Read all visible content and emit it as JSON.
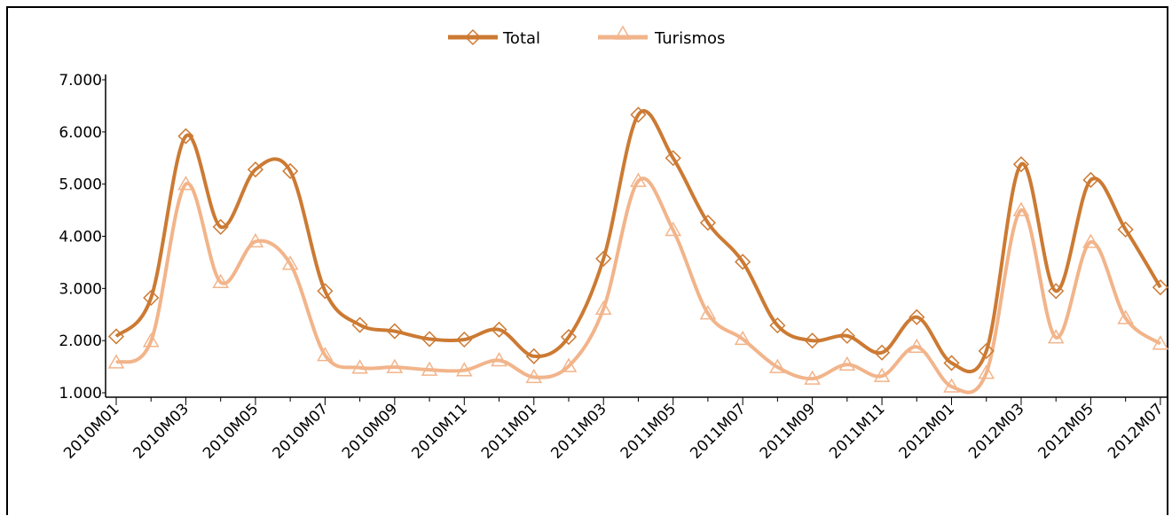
{
  "chart_data": {
    "type": "line",
    "title": "",
    "xlabel": "",
    "ylabel": "",
    "ylim": [
      1000,
      7000
    ],
    "y_ticks": [
      "1.000",
      "2.000",
      "3.000",
      "4.000",
      "5.000",
      "6.000",
      "7.000"
    ],
    "y_tick_values": [
      1000,
      2000,
      3000,
      4000,
      5000,
      6000,
      7000
    ],
    "x_tick_labels": [
      "2010M01",
      "2010M03",
      "2010M05",
      "2010M07",
      "2010M09",
      "2010M11",
      "2011M01",
      "2011M03",
      "2011M05",
      "2011M07",
      "2011M09",
      "2011M11",
      "2012M01",
      "2012M03",
      "2012M05",
      "2012M07"
    ],
    "legend_position": "top-center",
    "grid": false,
    "categories": [
      "2010M01",
      "2010M02",
      "2010M03",
      "2010M04",
      "2010M05",
      "2010M06",
      "2010M07",
      "2010M08",
      "2010M09",
      "2010M10",
      "2010M11",
      "2010M12",
      "2011M01",
      "2011M02",
      "2011M03",
      "2011M04",
      "2011M05",
      "2011M06",
      "2011M07",
      "2011M08",
      "2011M09",
      "2011M10",
      "2011M11",
      "2011M12",
      "2012M01",
      "2012M02",
      "2012M03",
      "2012M04",
      "2012M05",
      "2012M06",
      "2012M07"
    ],
    "series": [
      {
        "name": "Total",
        "color": "#cc7a33",
        "marker": "diamond",
        "values": [
          2080,
          2820,
          5920,
          4180,
          5280,
          5250,
          2950,
          2300,
          2180,
          2030,
          2020,
          2210,
          1700,
          2070,
          3570,
          6330,
          5500,
          4260,
          3510,
          2290,
          2000,
          2090,
          1770,
          2450,
          1570,
          1800,
          5380,
          2950,
          5080,
          4130,
          3020
        ]
      },
      {
        "name": "Turismos",
        "color": "#f2b48a",
        "marker": "triangle",
        "values": [
          1580,
          1990,
          5000,
          3120,
          3900,
          3470,
          1720,
          1480,
          1490,
          1440,
          1430,
          1620,
          1300,
          1510,
          2610,
          5060,
          4120,
          2520,
          2030,
          1490,
          1270,
          1540,
          1320,
          1880,
          1120,
          1380,
          4500,
          2060,
          3890,
          2430,
          1940
        ]
      }
    ]
  }
}
